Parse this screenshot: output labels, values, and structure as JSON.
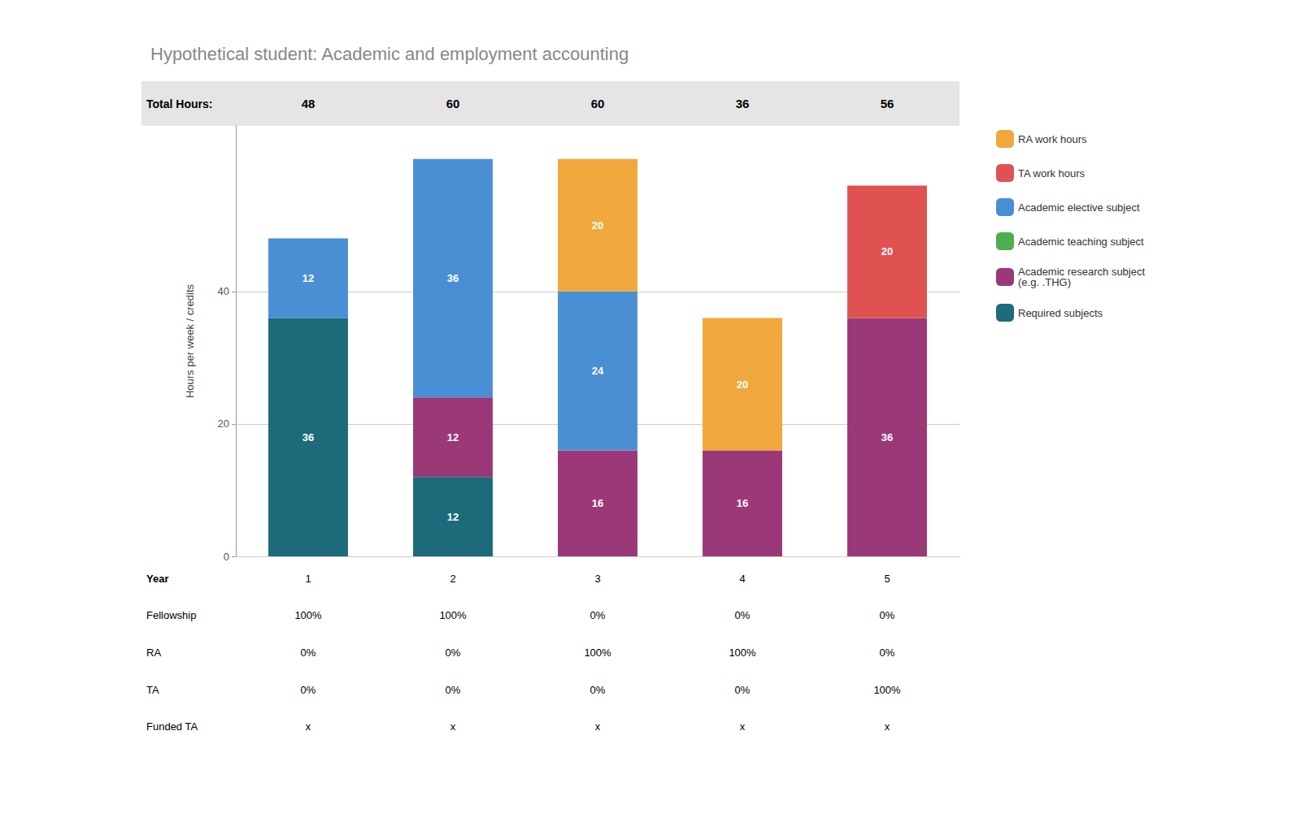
{
  "chart_data": {
    "type": "bar",
    "title": "Hypothetical student: Academic and employment accounting",
    "ylabel": "Hours per week / credits",
    "categories": [
      null,
      null,
      null,
      null,
      null
    ],
    "series": [
      {
        "name": "Required subjects",
        "color": "#1b6b7b",
        "values": [
          36,
          12,
          0,
          0,
          0
        ]
      },
      {
        "name": "Academic research subject\n(e.g. .THG)",
        "color": "#9b3878",
        "values": [
          0,
          12,
          16,
          16,
          36
        ]
      },
      {
        "name": "Academic teaching subject",
        "color": "#4caf50",
        "values": [
          0,
          0,
          0,
          0,
          0
        ]
      },
      {
        "name": "Academic elective subject",
        "color": "#4a8fd4",
        "values": [
          12,
          36,
          24,
          0,
          0
        ]
      },
      {
        "name": "TA work hours",
        "color": "#e05252",
        "values": [
          0,
          0,
          0,
          0,
          20
        ]
      },
      {
        "name": "RA work hours",
        "color": "#f0a83c",
        "values": [
          0,
          0,
          20,
          20,
          0
        ]
      }
    ],
    "stacked": true,
    "data_labels": true,
    "ylim": [
      0,
      65
    ],
    "yticks": [
      0,
      20,
      40
    ],
    "grid": true,
    "legend": "right",
    "tick_labels": "y",
    "header": {
      "label": "Total Hours:",
      "values": [
        48,
        60,
        60,
        36,
        56
      ]
    },
    "table": [
      {
        "label": "Year",
        "cells": [
          "1",
          "2",
          "3",
          "4",
          "5"
        ]
      },
      {
        "label": "Fellowship",
        "cells": [
          "100%",
          "100%",
          "0%",
          "0%",
          "0%"
        ]
      },
      {
        "label": "RA",
        "cells": [
          "0%",
          "0%",
          "100%",
          "100%",
          "0%"
        ]
      },
      {
        "label": "TA",
        "cells": [
          "0%",
          "0%",
          "0%",
          "0%",
          "100%"
        ]
      },
      {
        "label": "Funded TA",
        "cells": [
          "x",
          "x",
          "x",
          "x",
          "x"
        ]
      }
    ]
  }
}
